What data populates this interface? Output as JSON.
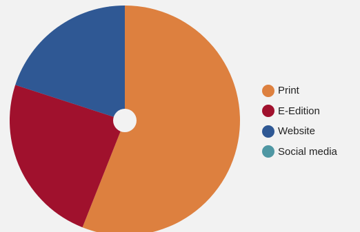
{
  "chart_data": {
    "type": "pie",
    "donut": true,
    "start_angle_deg": 0,
    "direction": "clockwise",
    "categories": [
      "Print",
      "E-Edition",
      "Website",
      "Social media"
    ],
    "values": [
      56,
      24,
      20,
      0
    ],
    "colors": [
      "#dd803f",
      "#a0112d",
      "#2f5894",
      "#4f97a3"
    ],
    "legend_position": "right",
    "background": "#f2f2f2"
  }
}
